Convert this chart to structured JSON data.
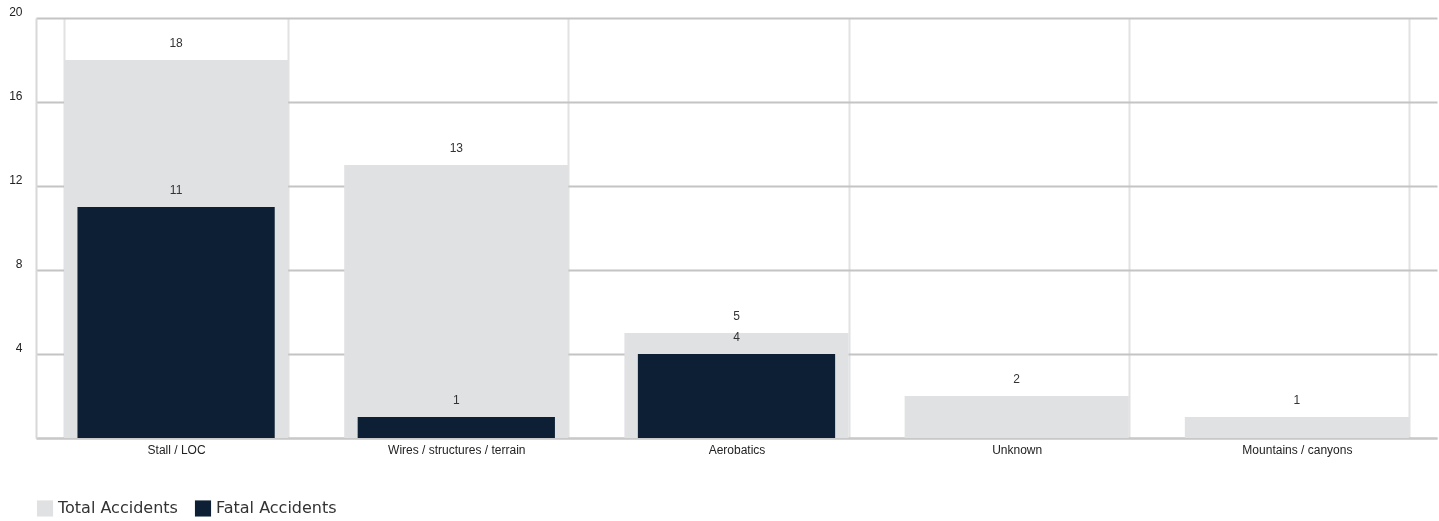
{
  "chart_data": {
    "type": "bar",
    "categories": [
      "Stall / LOC",
      "Wires / structures / terrain",
      "Aerobatics",
      "Unknown",
      "Mountains / canyons"
    ],
    "series": [
      {
        "name": "Total Accidents",
        "color": "#e0e1e3",
        "values": [
          18,
          13,
          5,
          2,
          1
        ]
      },
      {
        "name": "Fatal Accidents",
        "color": "#0c1f35",
        "values": [
          11,
          1,
          4,
          null,
          null
        ]
      }
    ],
    "ylim": [
      0,
      20
    ],
    "yticks": [
      {
        "value": 0,
        "label": null
      },
      4,
      8,
      12,
      16,
      20
    ],
    "grid": true,
    "legend": "bottom left",
    "data_labels": true
  }
}
